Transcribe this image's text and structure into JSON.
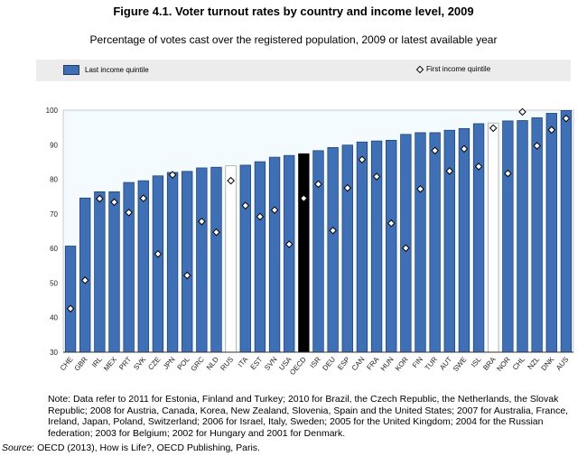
{
  "chart_data": {
    "type": "bar",
    "title": "Figure 4.1. Voter turnout rates by country and income level, 2009",
    "subtitle": "Percentage of votes cast over the registered population, 2009 or latest available year",
    "categories": [
      "CHE",
      "GBR",
      "IRL",
      "MEX",
      "PRT",
      "SVK",
      "CZE",
      "JPN",
      "POL",
      "GRC",
      "NLD",
      "RUS",
      "ITA",
      "EST",
      "SVN",
      "USA",
      "OECD",
      "ISR",
      "DEU",
      "ESP",
      "CAN",
      "FRA",
      "HUN",
      "KOR",
      "FIN",
      "TUR",
      "AUT",
      "SWE",
      "ISL",
      "BRA",
      "NOR",
      "CHL",
      "NZL",
      "DNK",
      "AUS"
    ],
    "series": [
      {
        "name": "Last income quintile",
        "type": "bar",
        "values": [
          60.7,
          74.6,
          76.4,
          76.4,
          79.1,
          79.6,
          81.0,
          82.0,
          82.3,
          83.3,
          83.5,
          83.9,
          84.1,
          85.1,
          86.4,
          86.9,
          87.4,
          88.3,
          89.2,
          89.9,
          90.8,
          91.1,
          91.3,
          93.0,
          93.5,
          93.5,
          94.2,
          94.7,
          96.1,
          96.3,
          96.9,
          97.0,
          97.8,
          99.1,
          99.9
        ]
      },
      {
        "name": "First income quintile",
        "type": "scatter",
        "marker": "diamond",
        "values": [
          42.6,
          50.8,
          74.4,
          73.4,
          70.4,
          74.5,
          58.4,
          81.3,
          52.2,
          67.8,
          64.7,
          79.6,
          72.4,
          69.2,
          71.1,
          61.2,
          74.5,
          78.6,
          65.2,
          77.5,
          85.7,
          80.8,
          67.3,
          60.1,
          77.2,
          88.3,
          82.4,
          88.8,
          83.7,
          94.8,
          81.7,
          99.5,
          89.7,
          94.3,
          97.6
        ]
      }
    ],
    "highlight": {
      "OECD": "#000000",
      "RUS": "#ffffff",
      "BRA": "#ffffff"
    },
    "colors": {
      "bar": "#3f6fb5",
      "bar_border": "#1f3a66",
      "plot_bg": "#f4fbff"
    },
    "ylim": [
      30,
      100
    ],
    "yticks": [
      30,
      40,
      50,
      60,
      70,
      80,
      90,
      100
    ],
    "xlabel": "",
    "ylabel": "",
    "legend": "top",
    "grid": false
  },
  "note": "Note: Data refer to 2011 for Estonia, Finland and Turkey; 2010 for Brazil, the Czech Republic, the Netherlands, the Slovak Republic; 2008 for Austria, Canada, Korea, New Zealand, Slovenia, Spain and the United States; 2007 for Australia, France, Ireland, Japan, Poland, Switzerland; 2006 for Israel, Italy, Sweden; 2005 for the United Kingdom; 2004 for the Russian federation; 2003 for Belgium; 2002 for Hungary and 2001 for Denmark.",
  "source_label": "Source",
  "source_text": ": OECD (2013), How is Life?, OECD Publishing, Paris."
}
